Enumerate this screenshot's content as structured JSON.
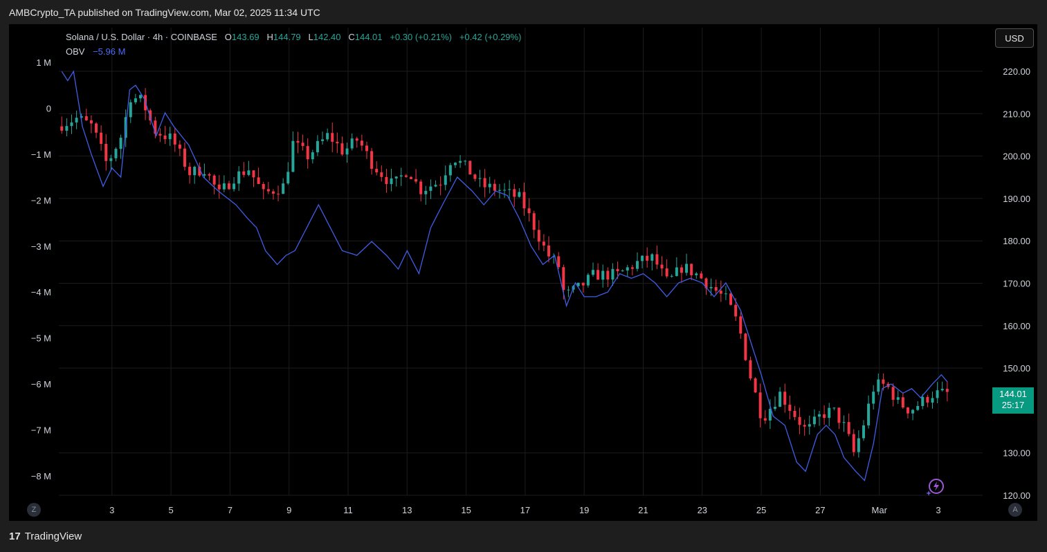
{
  "header": {
    "published": "AMBCrypto_TA published on TradingView.com, Mar 02, 2025 11:34 UTC"
  },
  "legend": {
    "symbol": "Solana / U.S. Dollar · 4h · COINBASE",
    "o_label": "O",
    "o_value": "143.69",
    "h_label": "H",
    "h_value": "144.79",
    "l_label": "L",
    "l_value": "142.40",
    "c_label": "C",
    "c_value": "144.01",
    "change": "+0.30 (+0.21%)",
    "change2": "+0.42 (+0.29%)",
    "obv_label": "OBV",
    "obv_value": "−5.96 M"
  },
  "currency_button": "USD",
  "last_price": {
    "value": "144.01",
    "countdown": "25:17"
  },
  "buttons": {
    "z": "Z",
    "a": "A"
  },
  "brand": {
    "logo": "17",
    "name": "TradingView"
  },
  "colors": {
    "up": "#26a69a",
    "down": "#f23645",
    "obv": "#3f5ee8",
    "bg": "#000000"
  },
  "chart_data": {
    "type": "candlestick",
    "price_axis": {
      "ticks": [
        "220.00",
        "210.00",
        "200.00",
        "190.00",
        "180.00",
        "170.00",
        "160.00",
        "150.00",
        "130.00",
        "120.00"
      ],
      "range": [
        120,
        230
      ]
    },
    "obv_axis": {
      "ticks": [
        "1 M",
        "0",
        "−1 M",
        "−2 M",
        "−3 M",
        "−4 M",
        "−5 M",
        "−6 M",
        "−7 M",
        "−8 M"
      ],
      "range": [
        -9,
        2
      ]
    },
    "x_ticks": [
      "3",
      "5",
      "7",
      "9",
      "11",
      "13",
      "15",
      "17",
      "19",
      "21",
      "23",
      "25",
      "27",
      "Mar",
      "3"
    ],
    "x_range": [
      1.2,
      32.5
    ],
    "price_keypoints": [
      [
        1.3,
        207
      ],
      [
        2.0,
        209
      ],
      [
        2.5,
        207
      ],
      [
        3.0,
        198
      ],
      [
        3.5,
        205
      ],
      [
        3.8,
        214
      ],
      [
        4.2,
        213
      ],
      [
        4.6,
        206
      ],
      [
        5.2,
        204
      ],
      [
        5.8,
        196
      ],
      [
        6.3,
        197
      ],
      [
        6.8,
        191
      ],
      [
        7.3,
        195
      ],
      [
        7.8,
        197
      ],
      [
        8.3,
        191
      ],
      [
        9.0,
        193
      ],
      [
        9.3,
        203
      ],
      [
        9.8,
        200
      ],
      [
        10.5,
        205
      ],
      [
        11.0,
        201
      ],
      [
        11.5,
        204
      ],
      [
        12.0,
        198
      ],
      [
        12.7,
        193
      ],
      [
        13.2,
        197
      ],
      [
        13.6,
        192
      ],
      [
        14.3,
        194
      ],
      [
        14.7,
        200
      ],
      [
        15.2,
        197
      ],
      [
        15.7,
        193
      ],
      [
        16.3,
        192
      ],
      [
        17.0,
        190
      ],
      [
        17.5,
        183
      ],
      [
        17.9,
        177
      ],
      [
        18.3,
        174
      ],
      [
        18.5,
        167
      ],
      [
        19.0,
        169
      ],
      [
        19.5,
        172
      ],
      [
        20.3,
        172
      ],
      [
        21.0,
        175
      ],
      [
        21.5,
        176
      ],
      [
        22.0,
        170
      ],
      [
        22.5,
        174
      ],
      [
        23.0,
        172
      ],
      [
        23.5,
        169
      ],
      [
        24.0,
        166
      ],
      [
        24.4,
        160
      ],
      [
        24.8,
        148
      ],
      [
        25.2,
        138
      ],
      [
        25.8,
        144
      ],
      [
        26.3,
        139
      ],
      [
        26.7,
        135
      ],
      [
        27.2,
        139
      ],
      [
        27.6,
        140
      ],
      [
        28.0,
        136
      ],
      [
        28.3,
        130
      ],
      [
        28.6,
        136
      ],
      [
        29.0,
        146
      ],
      [
        29.4,
        146
      ],
      [
        29.8,
        142
      ],
      [
        30.2,
        140
      ],
      [
        30.6,
        142
      ],
      [
        31.0,
        144
      ],
      [
        31.3,
        144
      ]
    ],
    "obv_keypoints": [
      [
        1.3,
        0.8
      ],
      [
        1.5,
        0.6
      ],
      [
        1.7,
        0.8
      ],
      [
        2.0,
        -0.4
      ],
      [
        2.3,
        -1.0
      ],
      [
        2.7,
        -1.7
      ],
      [
        3.0,
        -1.3
      ],
      [
        3.3,
        -1.5
      ],
      [
        3.6,
        0.4
      ],
      [
        3.8,
        0.5
      ],
      [
        4.1,
        0.2
      ],
      [
        4.5,
        -0.6
      ],
      [
        4.8,
        -0.1
      ],
      [
        5.1,
        -0.4
      ],
      [
        5.6,
        -0.8
      ],
      [
        6.1,
        -1.5
      ],
      [
        6.6,
        -1.8
      ],
      [
        7.2,
        -2.1
      ],
      [
        7.6,
        -2.4
      ],
      [
        7.9,
        -2.6
      ],
      [
        8.2,
        -3.1
      ],
      [
        8.6,
        -3.4
      ],
      [
        8.9,
        -3.2
      ],
      [
        9.2,
        -3.1
      ],
      [
        9.6,
        -2.6
      ],
      [
        10.0,
        -2.1
      ],
      [
        10.4,
        -2.6
      ],
      [
        10.8,
        -3.1
      ],
      [
        11.3,
        -3.2
      ],
      [
        11.8,
        -2.9
      ],
      [
        12.3,
        -3.2
      ],
      [
        12.7,
        -3.5
      ],
      [
        13.0,
        -3.1
      ],
      [
        13.4,
        -3.6
      ],
      [
        13.8,
        -2.6
      ],
      [
        14.2,
        -2.1
      ],
      [
        14.7,
        -1.5
      ],
      [
        15.2,
        -1.8
      ],
      [
        15.6,
        -2.1
      ],
      [
        16.0,
        -1.8
      ],
      [
        16.4,
        -1.9
      ],
      [
        16.8,
        -2.4
      ],
      [
        17.2,
        -3.0
      ],
      [
        17.6,
        -3.4
      ],
      [
        18.0,
        -3.2
      ],
      [
        18.4,
        -4.3
      ],
      [
        18.7,
        -3.8
      ],
      [
        19.0,
        -4.1
      ],
      [
        19.4,
        -4.1
      ],
      [
        19.8,
        -4.0
      ],
      [
        20.2,
        -3.6
      ],
      [
        20.6,
        -3.7
      ],
      [
        21.0,
        -3.6
      ],
      [
        21.4,
        -3.8
      ],
      [
        21.8,
        -4.1
      ],
      [
        22.2,
        -3.8
      ],
      [
        22.6,
        -3.7
      ],
      [
        23.0,
        -3.8
      ],
      [
        23.4,
        -4.1
      ],
      [
        23.8,
        -3.8
      ],
      [
        24.3,
        -4.4
      ],
      [
        24.7,
        -5.2
      ],
      [
        25.0,
        -5.8
      ],
      [
        25.4,
        -6.7
      ],
      [
        25.8,
        -6.9
      ],
      [
        26.2,
        -7.7
      ],
      [
        26.5,
        -7.9
      ],
      [
        26.9,
        -7.1
      ],
      [
        27.2,
        -6.9
      ],
      [
        27.5,
        -7.1
      ],
      [
        27.8,
        -7.6
      ],
      [
        28.2,
        -7.9
      ],
      [
        28.5,
        -8.1
      ],
      [
        28.8,
        -7.3
      ],
      [
        29.1,
        -6.1
      ],
      [
        29.4,
        -6.0
      ],
      [
        29.8,
        -6.2
      ],
      [
        30.1,
        -6.1
      ],
      [
        30.4,
        -6.3
      ],
      [
        30.8,
        -6.0
      ],
      [
        31.1,
        -5.8
      ],
      [
        31.3,
        -5.95
      ]
    ]
  }
}
